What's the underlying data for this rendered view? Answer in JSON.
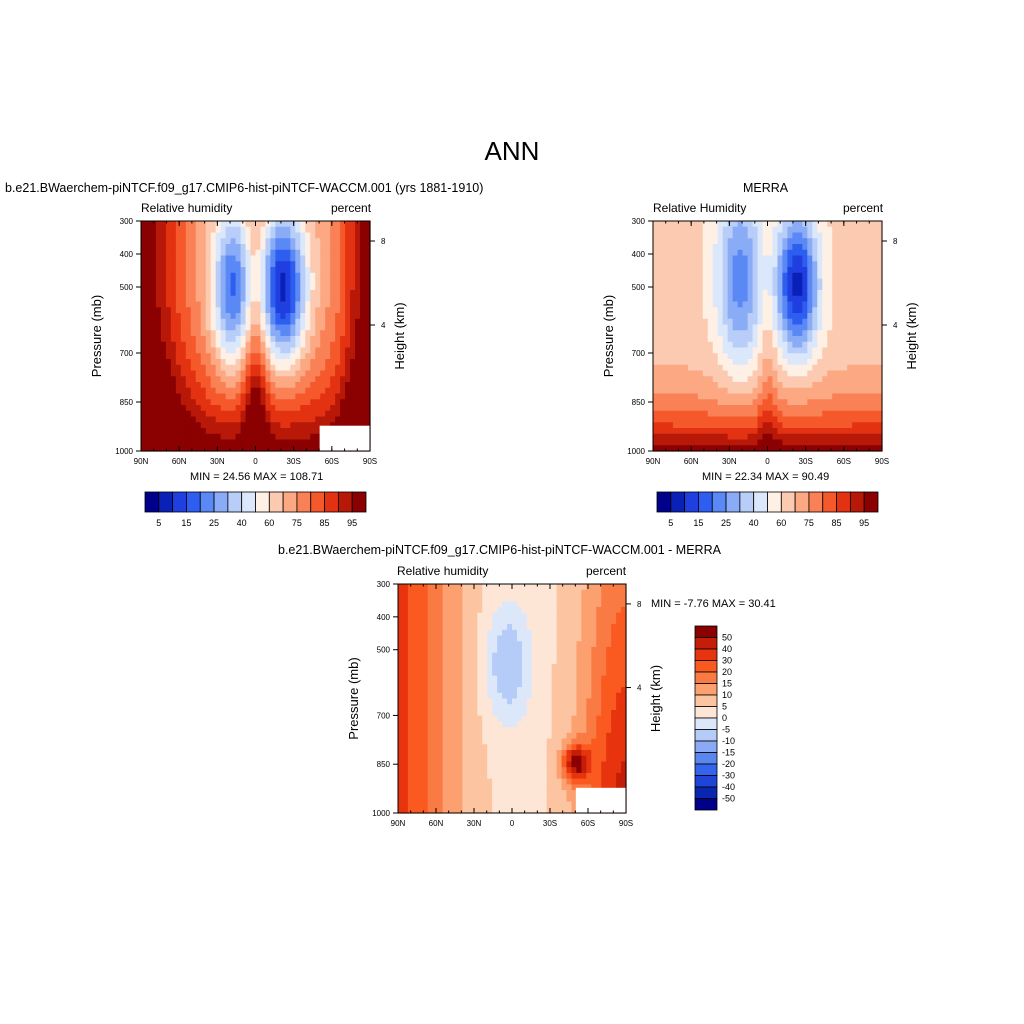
{
  "page_title": "ANN",
  "chart_data": [
    {
      "type": "heatmap",
      "title": "b.e21.BWaerchem-piNTCF.f09_g17.CMIP6-hist-piNTCF-WACCM.001 (yrs 1881-1910)",
      "left_string": "Relative humidity",
      "right_string": "percent",
      "ylabel": "Pressure (mb)",
      "y2label": "Height (km)",
      "x_ticks": [
        "90N",
        "60N",
        "30N",
        "0",
        "30S",
        "60S",
        "90S"
      ],
      "y_ticks": [
        "300",
        "400",
        "500",
        "700",
        "850",
        "1000"
      ],
      "y2_ticks": [
        "8",
        "4"
      ],
      "min_max_text": "MIN =  24.56  MAX = 108.71",
      "colorbar": {
        "orientation": "horizontal",
        "colors": [
          "#00008b",
          "#0a21b8",
          "#1f3fe0",
          "#2e5ef0",
          "#5a88f5",
          "#8aacf7",
          "#b8cdf7",
          "#dbe7fb",
          "#fff0e6",
          "#fccab0",
          "#fca882",
          "#fa8056",
          "#f5582b",
          "#e23212",
          "#b81808",
          "#8b0000"
        ],
        "labels": [
          "5",
          "15",
          "25",
          "40",
          "60",
          "75",
          "85",
          "95"
        ]
      },
      "data": [
        {
          "lat": 90,
          "values": [
            16,
            15,
            15,
            15,
            16,
            15,
            15,
            15,
            15,
            15,
            15,
            15,
            15,
            15,
            14,
            14,
            14
          ]
        },
        {
          "lat": 60,
          "values": [
            13,
            13,
            13,
            13,
            14,
            14,
            14,
            14,
            13,
            14,
            13,
            13,
            14,
            13,
            14,
            13,
            13
          ]
        },
        {
          "lat": 30,
          "values": [
            9,
            9,
            8,
            8,
            10,
            9,
            9,
            9,
            9,
            9,
            9,
            10,
            11,
            12,
            13,
            14,
            14
          ]
        },
        {
          "lat": 15,
          "values": [
            6,
            5,
            5,
            5,
            5,
            5,
            6,
            6,
            8,
            9,
            10,
            10,
            11,
            12,
            12,
            13,
            13
          ]
        },
        {
          "lat": 0,
          "values": [
            8,
            8,
            9,
            9,
            9,
            10,
            10,
            10,
            11,
            11,
            12,
            12,
            13,
            13,
            13,
            12,
            11
          ]
        },
        {
          "lat": -15,
          "values": [
            5,
            5,
            5,
            4,
            4,
            4,
            5,
            5,
            6,
            6,
            7,
            8,
            10,
            11,
            12,
            12,
            12
          ]
        },
        {
          "lat": -30,
          "values": [
            7,
            6,
            6,
            6,
            6,
            7,
            7,
            7,
            8,
            9,
            10,
            11,
            12,
            13,
            14,
            14,
            13
          ]
        },
        {
          "lat": -60,
          "values": [
            14,
            14,
            14,
            14,
            14,
            14,
            14,
            14,
            14,
            14,
            14,
            14,
            14,
            14,
            14,
            14,
            14
          ]
        },
        {
          "lat": -90,
          "values": [
            15,
            15,
            15,
            15,
            15,
            15,
            15,
            15,
            15,
            15,
            15,
            15,
            15,
            15,
            15,
            15,
            15
          ]
        }
      ]
    },
    {
      "type": "heatmap",
      "title": "MERRA",
      "left_string": "Relative Humidity",
      "right_string": "percent",
      "ylabel": "Pressure (mb)",
      "y2label": "Height (km)",
      "x_ticks": [
        "90N",
        "60N",
        "30N",
        "0",
        "30S",
        "60S",
        "90S"
      ],
      "y_ticks": [
        "300",
        "400",
        "500",
        "700",
        "850",
        "1000"
      ],
      "y2_ticks": [
        "8",
        "4"
      ],
      "min_max_text": "MIN =  22.34  MAX =  90.49",
      "colorbar": {
        "orientation": "horizontal",
        "colors": [
          "#00008b",
          "#0a21b8",
          "#1f3fe0",
          "#2e5ef0",
          "#5a88f5",
          "#8aacf7",
          "#b8cdf7",
          "#dbe7fb",
          "#fff0e6",
          "#fccab0",
          "#fca882",
          "#fa8056",
          "#f5582b",
          "#e23212",
          "#b81808",
          "#8b0000"
        ],
        "labels": [
          "5",
          "15",
          "25",
          "40",
          "60",
          "75",
          "85",
          "95"
        ]
      }
    },
    {
      "type": "heatmap",
      "title": "b.e21.BWaerchem-piNTCF.f09_g17.CMIP6-hist-piNTCF-WACCM.001 - MERRA",
      "left_string": "Relative humidity",
      "right_string": "percent",
      "ylabel": "Pressure (mb)",
      "y2label": "Height (km)",
      "x_ticks": [
        "90N",
        "60N",
        "30N",
        "0",
        "30S",
        "60S",
        "90S"
      ],
      "y_ticks": [
        "300",
        "400",
        "500",
        "700",
        "850",
        "1000"
      ],
      "y2_ticks": [
        "8",
        "4"
      ],
      "min_max_text": "MIN =  -7.76  MAX =  30.41",
      "colorbar": {
        "orientation": "vertical",
        "colors": [
          "#8b0000",
          "#c41e08",
          "#e8340e",
          "#fa5a20",
          "#fa7a44",
          "#fca070",
          "#fcc4a0",
          "#fde6d6",
          "#dce8fa",
          "#b4ccf7",
          "#8aaaf5",
          "#5a86f0",
          "#3564ec",
          "#1f45d8",
          "#0a25b0",
          "#00008b"
        ],
        "labels": [
          "50",
          "40",
          "30",
          "20",
          "15",
          "10",
          "5",
          "0",
          "-5",
          "-10",
          "-15",
          "-20",
          "-30",
          "-40",
          "-50"
        ]
      }
    }
  ]
}
